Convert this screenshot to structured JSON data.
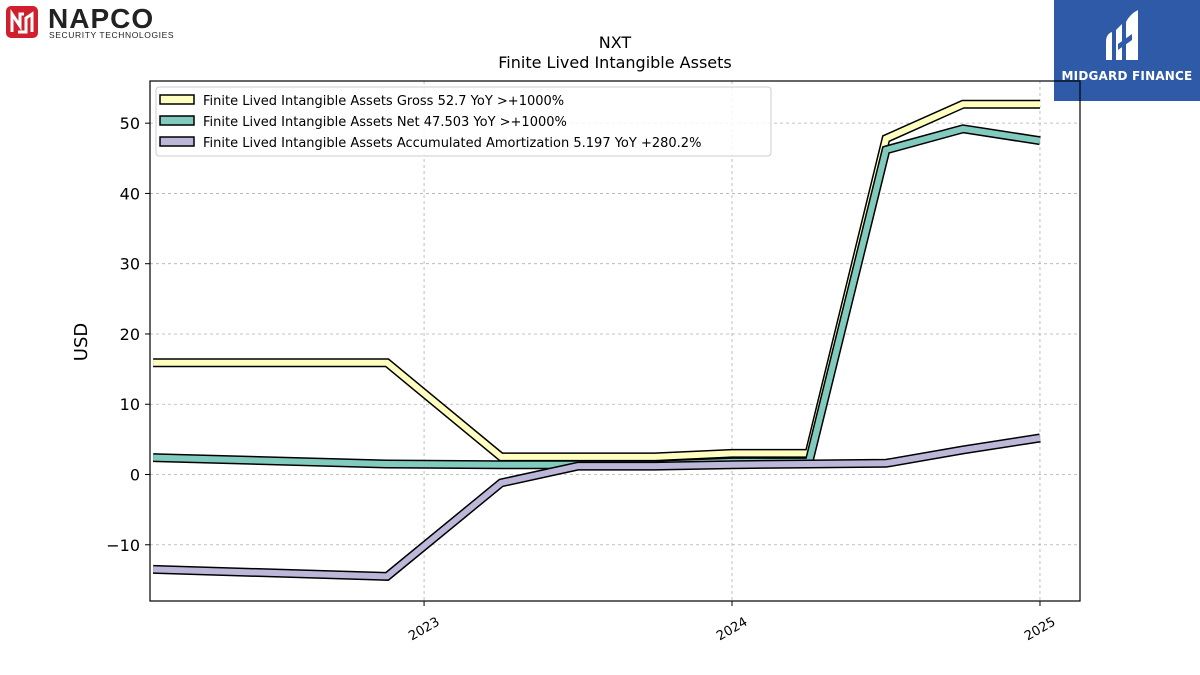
{
  "logos": {
    "left_brand": "NAPCO",
    "left_tagline": "SECURITY TECHNOLOGIES",
    "left_brand_color": "#d0202e",
    "right_brand": "MIDGARD FINANCE",
    "right_bg_color": "#2f5aa8"
  },
  "chart_data": {
    "type": "line",
    "title": "NXT",
    "subtitle": "Finite Lived Intangible Assets",
    "ylabel": "USD",
    "xlabel": "",
    "ylim": [
      -18,
      56
    ],
    "xlim": [
      2022.11,
      2025.13
    ],
    "yticks": [
      -10,
      0,
      10,
      20,
      30,
      40,
      50
    ],
    "ytick_labels": [
      "−10",
      "0",
      "10",
      "20",
      "30",
      "40",
      "50"
    ],
    "xticks": [
      2023,
      2024,
      2025
    ],
    "xtick_labels": [
      "2023",
      "2024",
      "2025"
    ],
    "grid": true,
    "legend_position": "top-left",
    "series": [
      {
        "name": "Finite Lived Intangible Assets Gross  52.7 YoY >+1000%",
        "color": "#ffffc0",
        "x": [
          2022.12,
          2022.88,
          2023.25,
          2023.5,
          2023.75,
          2024.0,
          2024.25,
          2024.5,
          2024.75,
          2025.0
        ],
        "values": [
          15.9,
          15.9,
          2.5,
          2.5,
          2.5,
          3.0,
          3.0,
          47.8,
          52.7,
          52.7
        ]
      },
      {
        "name": "Finite Lived Intangible Assets Net  47.503 YoY >+1000%",
        "color": "#80cbbd",
        "x": [
          2022.12,
          2022.88,
          2023.25,
          2023.5,
          2023.75,
          2024.0,
          2024.25,
          2024.5,
          2024.75,
          2025.0
        ],
        "values": [
          2.4,
          1.5,
          1.4,
          1.4,
          1.4,
          1.8,
          1.8,
          46.2,
          49.2,
          47.5
        ]
      },
      {
        "name": "Finite Lived Intangible Assets Accumulated Amortization  5.197 YoY +280.2%",
        "color": "#bcb6d8",
        "x": [
          2022.12,
          2022.88,
          2023.25,
          2023.5,
          2023.75,
          2024.0,
          2024.25,
          2024.5,
          2024.75,
          2025.0
        ],
        "values": [
          -13.5,
          -14.5,
          -1.2,
          1.2,
          1.2,
          1.4,
          1.5,
          1.6,
          3.5,
          5.2
        ]
      }
    ]
  }
}
